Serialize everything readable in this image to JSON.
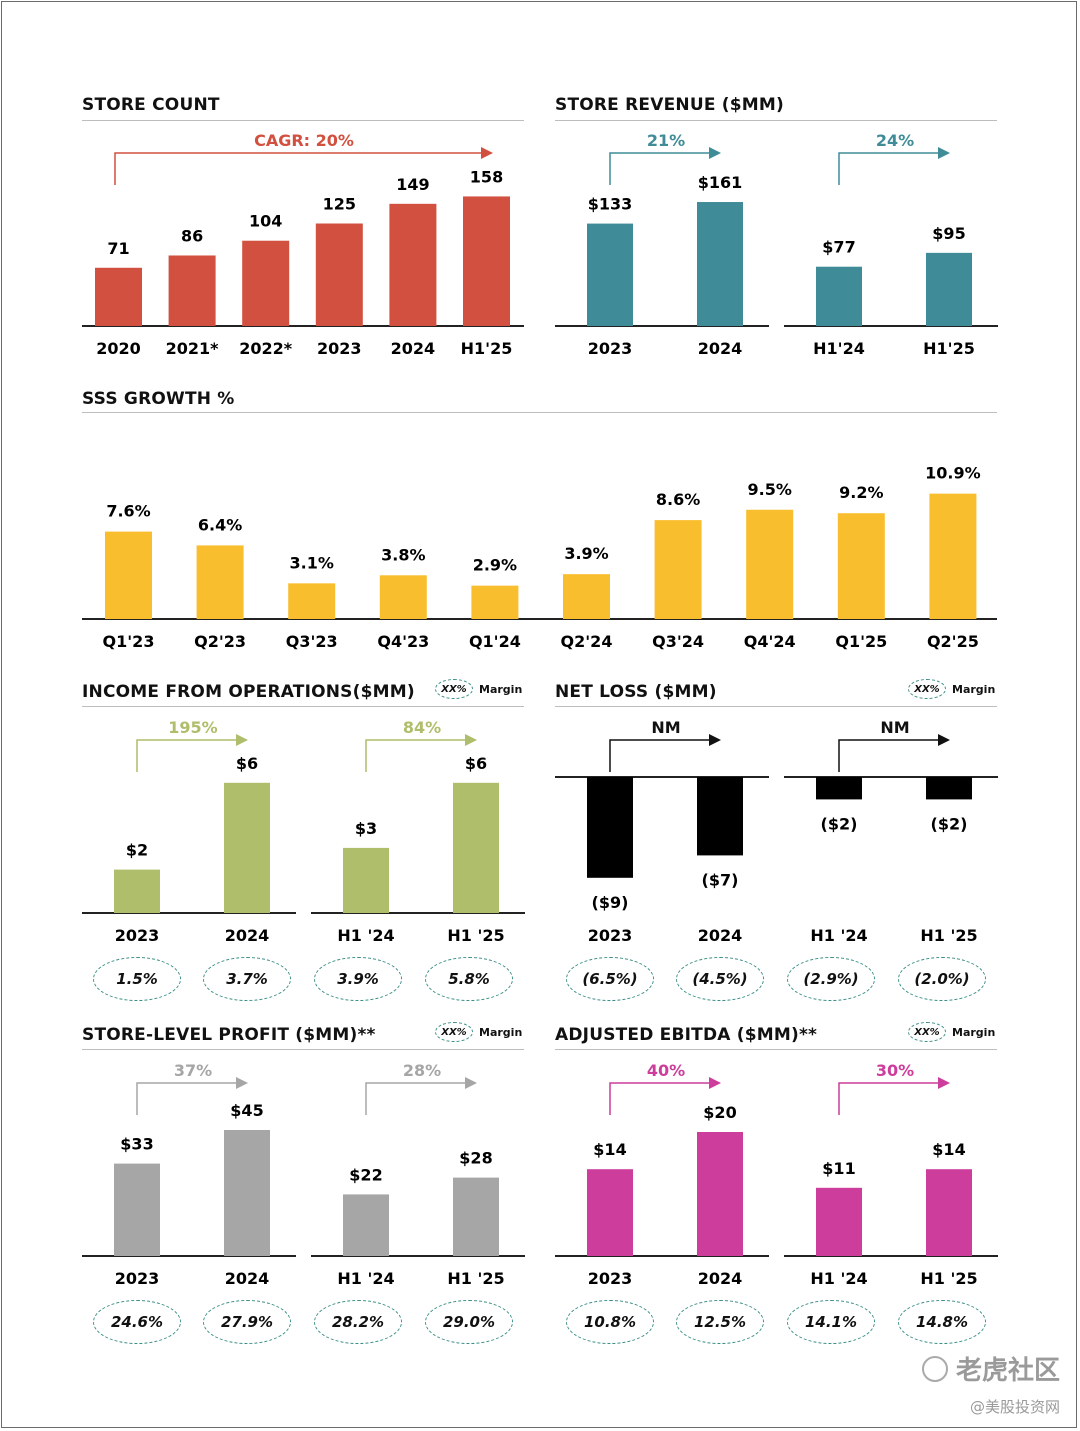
{
  "legend": {
    "badge": "XX%",
    "label": "Margin"
  },
  "watermark": {
    "line1": "老虎社区",
    "line2": "@美股投资网"
  },
  "colors": {
    "store_count": "#d2503f",
    "store_revenue": "#3f8b97",
    "sss": "#f8be2d",
    "income": "#aebe6b",
    "net_loss": "#000000",
    "store_profit": "#a6a6a6",
    "ebitda": "#cc3d9c",
    "oval": "#3a8f86"
  },
  "panels": {
    "store_count": {
      "title": "STORE COUNT"
    },
    "store_revenue": {
      "title": "STORE REVENUE ($MM)"
    },
    "sss": {
      "title": "SSS GROWTH %"
    },
    "income": {
      "title": "INCOME FROM OPERATIONS($MM)",
      "margins": [
        "1.5%",
        "3.7%",
        "3.9%",
        "5.8%"
      ]
    },
    "net_loss": {
      "title": "NET LOSS ($MM)",
      "margins": [
        "(6.5%)",
        "(4.5%)",
        "(2.9%)",
        "(2.0%)"
      ]
    },
    "store_profit": {
      "title": "STORE-LEVEL PROFIT ($MM)**",
      "margins": [
        "24.6%",
        "27.9%",
        "28.2%",
        "29.0%"
      ]
    },
    "ebitda": {
      "title": "ADJUSTED EBITDA ($MM)**",
      "margins": [
        "10.8%",
        "12.5%",
        "14.1%",
        "14.8%"
      ]
    }
  },
  "chart_data": [
    {
      "id": "store_count",
      "type": "bar",
      "categories": [
        "2020",
        "2021*",
        "2022*",
        "2023",
        "2024",
        "H1'25"
      ],
      "values": [
        71,
        86,
        104,
        125,
        149,
        158
      ],
      "labels": [
        "71",
        "86",
        "104",
        "125",
        "149",
        "158"
      ],
      "annotations": [
        "CAGR: 20%"
      ]
    },
    {
      "id": "store_revenue",
      "type": "bar",
      "groups": [
        {
          "categories": [
            "2023",
            "2024"
          ],
          "values": [
            133,
            161
          ],
          "labels": [
            "$133",
            "$161"
          ],
          "growth": "21%"
        },
        {
          "categories": [
            "H1'24",
            "H1'25"
          ],
          "values": [
            77,
            95
          ],
          "labels": [
            "$77",
            "$95"
          ],
          "growth": "24%"
        }
      ]
    },
    {
      "id": "sss",
      "type": "bar",
      "categories": [
        "Q1'23",
        "Q2'23",
        "Q3'23",
        "Q4'23",
        "Q1'24",
        "Q2'24",
        "Q3'24",
        "Q4'24",
        "Q1'25",
        "Q2'25"
      ],
      "values": [
        7.6,
        6.4,
        3.1,
        3.8,
        2.9,
        3.9,
        8.6,
        9.5,
        9.2,
        10.9
      ],
      "labels": [
        "7.6%",
        "6.4%",
        "3.1%",
        "3.8%",
        "2.9%",
        "3.9%",
        "8.6%",
        "9.5%",
        "9.2%",
        "10.9%"
      ]
    },
    {
      "id": "income",
      "type": "bar",
      "groups": [
        {
          "categories": [
            "2023",
            "2024"
          ],
          "values": [
            2,
            6
          ],
          "labels": [
            "$2",
            "$6"
          ],
          "growth": "195%"
        },
        {
          "categories": [
            "H1 '24",
            "H1 '25"
          ],
          "values": [
            3,
            6
          ],
          "labels": [
            "$3",
            "$6"
          ],
          "growth": "84%"
        }
      ]
    },
    {
      "id": "net_loss",
      "type": "bar",
      "groups": [
        {
          "categories": [
            "2023",
            "2024"
          ],
          "values": [
            -9,
            -7
          ],
          "labels": [
            "($9)",
            "($7)"
          ],
          "growth": "NM"
        },
        {
          "categories": [
            "H1 '24",
            "H1 '25"
          ],
          "values": [
            -2,
            -2
          ],
          "labels": [
            "($2)",
            "($2)"
          ],
          "growth": "NM"
        }
      ]
    },
    {
      "id": "store_profit",
      "type": "bar",
      "groups": [
        {
          "categories": [
            "2023",
            "2024"
          ],
          "values": [
            33,
            45
          ],
          "labels": [
            "$33",
            "$45"
          ],
          "growth": "37%"
        },
        {
          "categories": [
            "H1 '24",
            "H1 '25"
          ],
          "values": [
            22,
            28
          ],
          "labels": [
            "$22",
            "$28"
          ],
          "growth": "28%"
        }
      ]
    },
    {
      "id": "ebitda",
      "type": "bar",
      "groups": [
        {
          "categories": [
            "2023",
            "2024"
          ],
          "values": [
            14,
            20
          ],
          "labels": [
            "$14",
            "$20"
          ],
          "growth": "40%"
        },
        {
          "categories": [
            "H1 '24",
            "H1 '25"
          ],
          "values": [
            11,
            14
          ],
          "labels": [
            "$11",
            "$14"
          ],
          "growth": "30%"
        }
      ]
    }
  ]
}
